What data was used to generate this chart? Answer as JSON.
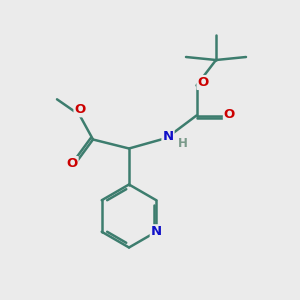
{
  "bg_color": "#ebebeb",
  "bond_color": "#3d7d6e",
  "C_color": "#3d7d6e",
  "N_color": "#1010c8",
  "O_color": "#cc0000",
  "H_color": "#7a9a8a",
  "figsize": [
    3.0,
    3.0
  ],
  "dpi": 100,
  "xlim": [
    0,
    10
  ],
  "ylim": [
    0,
    10
  ]
}
